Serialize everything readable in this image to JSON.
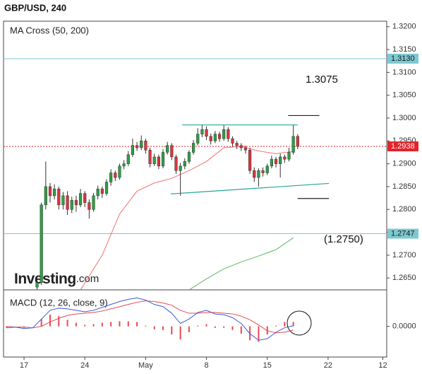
{
  "chart_data": {
    "type": "candlestick",
    "title": "GBP/USD, 240",
    "indicator_label": "MA Cross (50, 200)",
    "logo": {
      "brand": "Investing",
      "suffix": ".com"
    },
    "xlim": [
      -2.36,
      41.75
    ],
    "xticks": [
      {
        "value": 0,
        "label": "17"
      },
      {
        "value": 7,
        "label": "24"
      },
      {
        "value": 14,
        "label": "May"
      },
      {
        "value": 21,
        "label": "8"
      },
      {
        "value": 28,
        "label": "15"
      },
      {
        "value": 35,
        "label": "22"
      },
      {
        "value": 41.3,
        "label": "12"
      }
    ],
    "ylim": [
      1.2624,
      1.3212
    ],
    "yticks": [
      {
        "value": 1.32,
        "label": "1.3200"
      },
      {
        "value": 1.315,
        "label": "1.3150"
      },
      {
        "value": 1.31,
        "label": "1.3100"
      },
      {
        "value": 1.305,
        "label": "1.3050"
      },
      {
        "value": 1.3,
        "label": "1.3000"
      },
      {
        "value": 1.295,
        "label": "1.2950"
      },
      {
        "value": 1.29,
        "label": "1.2900"
      },
      {
        "value": 1.285,
        "label": "1.2850"
      },
      {
        "value": 1.28,
        "label": "1.2800"
      },
      {
        "value": 1.275,
        "label": "1.2750"
      },
      {
        "value": 1.27,
        "label": "1.2700"
      },
      {
        "value": 1.265,
        "label": "1.2650"
      }
    ],
    "up_color": "#2f9e44",
    "down_color": "#d9363e",
    "x": [
      1.5,
      2,
      2.5,
      3,
      3.5,
      4,
      4.5,
      5,
      5.5,
      6,
      6.5,
      7,
      7.5,
      8,
      8.5,
      9,
      9.5,
      10,
      10.5,
      11,
      11.5,
      12,
      12.5,
      13,
      13.5,
      14,
      14.5,
      15,
      15.5,
      16,
      16.5,
      17,
      17.5,
      18,
      18.5,
      19,
      19.5,
      20,
      20.5,
      21,
      21.5,
      22,
      22.5,
      23,
      23.5,
      24,
      24.5,
      25,
      25.5,
      26,
      26.5,
      27,
      27.5,
      28,
      28.5,
      29,
      29.5,
      30,
      30.5,
      31,
      31.5
    ],
    "open": [
      1.263,
      1.264,
      1.281,
      1.285,
      1.283,
      1.2845,
      1.281,
      1.283,
      1.28,
      1.282,
      1.281,
      1.2835,
      1.2815,
      1.28,
      1.283,
      1.2845,
      1.2835,
      1.286,
      1.288,
      1.287,
      1.2895,
      1.29,
      1.292,
      1.294,
      1.2935,
      1.295,
      1.293,
      1.29,
      1.2915,
      1.2895,
      1.2925,
      1.294,
      1.2915,
      1.2885,
      1.2895,
      1.2905,
      1.2925,
      1.2945,
      1.2965,
      1.2975,
      1.296,
      1.295,
      1.2965,
      1.2955,
      1.2975,
      1.2955,
      1.2945,
      1.294,
      1.2935,
      1.293,
      1.2885,
      1.287,
      1.2885,
      1.288,
      1.2895,
      1.291,
      1.29,
      1.2915,
      1.291,
      1.2925,
      1.296
    ],
    "high": [
      1.2648,
      1.2815,
      1.2905,
      1.2858,
      1.2855,
      1.285,
      1.2838,
      1.284,
      1.2828,
      1.283,
      1.2845,
      1.284,
      1.2822,
      1.2836,
      1.2852,
      1.285,
      1.2866,
      1.2888,
      1.2885,
      1.29,
      1.2908,
      1.2928,
      1.2955,
      1.2948,
      1.2962,
      1.2955,
      1.2935,
      1.2922,
      1.292,
      1.2932,
      1.2948,
      1.2945,
      1.292,
      1.2902,
      1.2912,
      1.293,
      1.2952,
      1.2978,
      1.2985,
      1.2982,
      1.2966,
      1.2972,
      1.297,
      1.2985,
      1.298,
      1.296,
      1.295,
      1.2945,
      1.294,
      1.2935,
      1.2892,
      1.289,
      1.2892,
      1.29,
      1.2918,
      1.2915,
      1.2922,
      1.292,
      1.2935,
      1.2985,
      1.2965
    ],
    "low": [
      1.2625,
      1.2635,
      1.28,
      1.2815,
      1.2822,
      1.28,
      1.28,
      1.2788,
      1.2792,
      1.2795,
      1.2805,
      1.2805,
      1.278,
      1.2795,
      1.2822,
      1.2825,
      1.283,
      1.2852,
      1.2862,
      1.2865,
      1.2888,
      1.2895,
      1.2915,
      1.2928,
      1.293,
      1.2922,
      1.2892,
      1.2895,
      1.2888,
      1.289,
      1.292,
      1.2908,
      1.2878,
      1.283,
      1.2888,
      1.29,
      1.292,
      1.294,
      1.2958,
      1.2952,
      1.2942,
      1.2945,
      1.2948,
      1.295,
      1.2948,
      1.2938,
      1.2932,
      1.2928,
      1.2922,
      1.2878,
      1.286,
      1.285,
      1.2872,
      1.2875,
      1.289,
      1.2892,
      1.287,
      1.2902,
      1.2905,
      1.292,
      1.2932
    ],
    "close": [
      1.264,
      1.281,
      1.285,
      1.283,
      1.2845,
      1.281,
      1.283,
      1.28,
      1.282,
      1.281,
      1.2835,
      1.2815,
      1.28,
      1.283,
      1.2845,
      1.2835,
      1.286,
      1.288,
      1.287,
      1.2895,
      1.29,
      1.292,
      1.294,
      1.2935,
      1.295,
      1.293,
      1.29,
      1.2915,
      1.2895,
      1.2925,
      1.294,
      1.2915,
      1.2885,
      1.2895,
      1.2905,
      1.2925,
      1.2945,
      1.2965,
      1.2975,
      1.296,
      1.295,
      1.2965,
      1.2955,
      1.2975,
      1.2955,
      1.2945,
      1.294,
      1.2935,
      1.293,
      1.2885,
      1.287,
      1.2885,
      1.288,
      1.2895,
      1.291,
      1.29,
      1.2915,
      1.291,
      1.2925,
      1.296,
      1.2938
    ],
    "ma_lines": [
      {
        "color": "#f07070",
        "x": [
          6.5,
          9,
          11,
          13,
          15,
          17,
          19,
          21,
          23,
          25,
          27,
          29,
          31
        ],
        "values": [
          1.2624,
          1.27,
          1.279,
          1.284,
          1.2858,
          1.2868,
          1.2885,
          1.2905,
          1.2935,
          1.2938,
          1.2928,
          1.2922,
          1.2927
        ]
      },
      {
        "color": "#5cb85c",
        "x": [
          19,
          21,
          23,
          25,
          27,
          29,
          31
        ],
        "values": [
          1.2624,
          1.2648,
          1.267,
          1.2685,
          1.2698,
          1.2712,
          1.2738
        ]
      }
    ],
    "levels": [
      {
        "value": 1.313,
        "label": "1.3130",
        "color": "#7cc9d1",
        "text_color": "#1a1a1a",
        "style": "solid"
      },
      {
        "value": 1.2747,
        "label": "1.2747",
        "color": "#7cc9d1",
        "text_color": "#1a1a1a",
        "style": "solid"
      },
      {
        "value": 1.2938,
        "label": "1.2938",
        "color": "#e2242b",
        "text_color": "#ffffff",
        "style": "dotted"
      }
    ],
    "trendlines": [
      {
        "color": "#26a69a",
        "x": [
          18.2,
          31.5
        ],
        "values": [
          1.2985,
          1.2985
        ]
      },
      {
        "color": "#26a69a",
        "x": [
          16.9,
          35.1
        ],
        "values": [
          1.2834,
          1.2857
        ]
      },
      {
        "color": "#222222",
        "x": [
          30.4,
          34.0
        ],
        "values": [
          1.30055,
          1.30055
        ]
      },
      {
        "color": "#222222",
        "x": [
          31.5,
          35.1
        ],
        "values": [
          1.2824,
          1.2824
        ]
      }
    ],
    "annotations": [
      {
        "text": "1.3075"
      },
      {
        "text": "(1.2750)"
      }
    ],
    "macd": {
      "label": "MACD (12, 26, close, 9)",
      "ylim": [
        -0.0042,
        0.005
      ],
      "yticks": [
        {
          "value": 0,
          "label": "0.0000"
        }
      ],
      "x": [
        -2,
        -1,
        0,
        1,
        2,
        3,
        4,
        5,
        6,
        7,
        8,
        9,
        10,
        11,
        12,
        13,
        14,
        15,
        16,
        17,
        18,
        19,
        20,
        21,
        22,
        23,
        24,
        25,
        26,
        27,
        28,
        29,
        30,
        31
      ],
      "macd_color": "#3b5bdb",
      "signal_color": "#e8494f",
      "hist_color": "#e8494f",
      "macd": [
        -0.0002,
        -0.0001,
        -0.0003,
        -0.0002,
        0.001,
        0.0022,
        0.0025,
        0.0024,
        0.0022,
        0.002,
        0.0022,
        0.0026,
        0.003,
        0.0034,
        0.0037,
        0.0039,
        0.0036,
        0.003,
        0.0027,
        0.0018,
        0.0004,
        0.001,
        0.0019,
        0.0022,
        0.0017,
        0.0016,
        0.0012,
        0.0004,
        -0.001,
        -0.0019,
        -0.0017,
        -0.0008,
        -0.0002,
        0.0001
      ],
      "signal": [
        0.0,
        -0.0001,
        -0.0001,
        -0.0002,
        0.0,
        0.0006,
        0.0011,
        0.0015,
        0.0017,
        0.0018,
        0.0019,
        0.0021,
        0.0024,
        0.0027,
        0.003,
        0.0033,
        0.0035,
        0.0034,
        0.0032,
        0.0029,
        0.0022,
        0.0018,
        0.0018,
        0.0019,
        0.0019,
        0.0018,
        0.0017,
        0.0014,
        0.0009,
        0.0002,
        -0.0006,
        -0.0009,
        -0.0008,
        -0.0005
      ],
      "histogram": [
        -0.0002,
        0,
        -0.0002,
        0,
        0.001,
        0.0016,
        0.0014,
        0.0009,
        0.0005,
        0.0002,
        0.0003,
        0.0005,
        0.0006,
        0.0007,
        0.0007,
        0.0006,
        0.0001,
        -0.0004,
        -0.0005,
        -0.0011,
        -0.0018,
        -0.0008,
        0.0001,
        0.0003,
        -0.0002,
        -0.0002,
        -0.0005,
        -0.001,
        -0.0019,
        -0.0021,
        -0.0011,
        0.0001,
        0.0006,
        0.0006
      ]
    }
  }
}
